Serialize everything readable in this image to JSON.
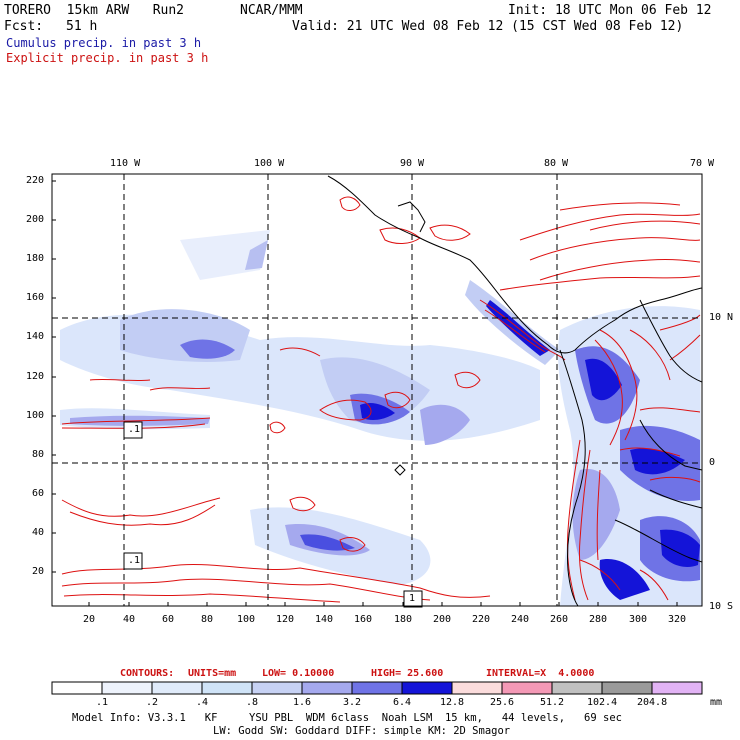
{
  "header": {
    "model": "TORERO  15km ARW   Run2",
    "org": "NCAR/MMM",
    "init": "Init: 18 UTC Mon 06 Feb 12",
    "fcst_label": "Fcst:",
    "fcst_value": "51 h",
    "valid": "Valid: 21 UTC Wed 08 Feb 12 (15 CST Wed 08 Feb 12)",
    "line_cumulus": "Cumulus precip. in past 3 h",
    "line_explicit": "Explicit precip. in past 3 h"
  },
  "top_lon_labels": [
    "110 W",
    "100 W",
    "90 W",
    "80 W",
    "70 W"
  ],
  "right_lat_labels": [
    "10 N",
    "0",
    "10 S"
  ],
  "y_axis_labels": [
    "220",
    "200",
    "180",
    "160",
    "140",
    "120",
    "100",
    "80",
    "60",
    "40",
    "20"
  ],
  "x_axis_labels": [
    "20",
    "40",
    "60",
    "80",
    "100",
    "120",
    "140",
    "160",
    "180",
    "200",
    "220",
    "240",
    "260",
    "280",
    "300",
    "320"
  ],
  "contour_info": {
    "label": "CONTOURS:",
    "units": "UNITS=mm",
    "low": "LOW= 0.10000",
    "high": "HIGH= 25.600",
    "interval": "INTERVAL=X  4.0000"
  },
  "colorbar": {
    "labels": [
      ".1",
      ".2",
      ".4",
      ".8",
      "1.6",
      "3.2",
      "6.4",
      "12.8",
      "25.6",
      "51.2",
      "102.4",
      "204.8"
    ],
    "unit": "mm",
    "colors": [
      "#ffffff",
      "#eef3fc",
      "#e0ebfa",
      "#cfe3f7",
      "#c7d2f4",
      "#a5a9ee",
      "#6f73e6",
      "#1414d8",
      "#fbdcdc",
      "#f499b6",
      "#c0c0c0",
      "#9a9a9a",
      "#e2b3f5"
    ]
  },
  "model_info": {
    "line1": "Model Info: V3.3.1   KF     YSU PBL  WDM 6class  Noah LSM  15 km,   44 levels,   69 sec",
    "line2": "LW: Godd SW: Goddard DIFF: simple KM: 2D Smagor"
  },
  "markers": [
    ".1",
    ".1",
    "1"
  ]
}
